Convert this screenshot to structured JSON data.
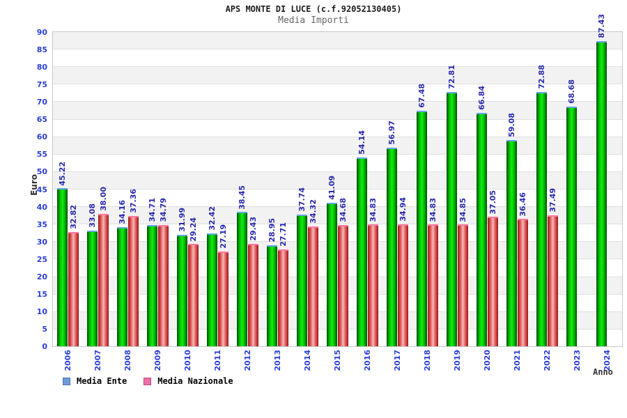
{
  "chart_data": {
    "type": "bar",
    "title": "APS MONTE DI LUCE (c.f.92052130405)",
    "subtitle": "Media Importi",
    "xlabel": "Anno",
    "ylabel": "Euro",
    "categories": [
      "2006",
      "2007",
      "2008",
      "2009",
      "2010",
      "2011",
      "2012",
      "2013",
      "2014",
      "2015",
      "2016",
      "2017",
      "2018",
      "2019",
      "2020",
      "2021",
      "2022",
      "2023",
      "2024"
    ],
    "series": [
      {
        "name": "Media Ente",
        "values": [
          45.22,
          33.08,
          34.16,
          34.71,
          31.99,
          32.42,
          38.45,
          28.95,
          37.74,
          41.09,
          54.14,
          56.97,
          67.48,
          72.81,
          66.84,
          59.08,
          72.88,
          68.68,
          87.43
        ]
      },
      {
        "name": "Media Nazionale",
        "values": [
          32.82,
          38.0,
          37.36,
          34.79,
          29.24,
          27.19,
          29.43,
          27.71,
          34.32,
          34.68,
          34.83,
          34.94,
          34.83,
          34.85,
          37.05,
          36.46,
          37.49,
          null,
          null
        ]
      }
    ],
    "ylim": [
      0,
      90
    ],
    "y_tick_step": 5,
    "y_ticks": [
      0,
      5,
      10,
      15,
      20,
      25,
      30,
      35,
      40,
      45,
      50,
      55,
      60,
      65,
      70,
      75,
      80,
      85,
      90
    ],
    "grid": "horizontal alternating bands every 5 units",
    "legend_position": "bottom-left",
    "value_label_format": "two decimals, rotated 90deg above each bar"
  },
  "colors": {
    "title_color": "#1c1c1c",
    "subtitle_color": "#666666",
    "axis_title_color": "#333333",
    "tick_color": "#2b3fd6",
    "value_color": "#2a2aae",
    "legend_text": "#000000",
    "band_gray": "#f2f2f2",
    "grid_line": "#e0e0e0",
    "plot_border": "#c8c8c8",
    "ente_edge": "#024b02",
    "ente_mid": "#00b400",
    "ente_light": "#12ee12",
    "ente_cap": "#6aa6e8",
    "naz_edge": "#9c1616",
    "naz_mid": "#dd5555",
    "naz_light": "#f5b8b8",
    "naz_cap": "#ff7aa2",
    "legend_ente_swatch": "#6f9bd9",
    "legend_ente_border": "#4a72a8",
    "legend_naz_swatch": "#ee6fa8",
    "legend_naz_border": "#b84e80"
  }
}
